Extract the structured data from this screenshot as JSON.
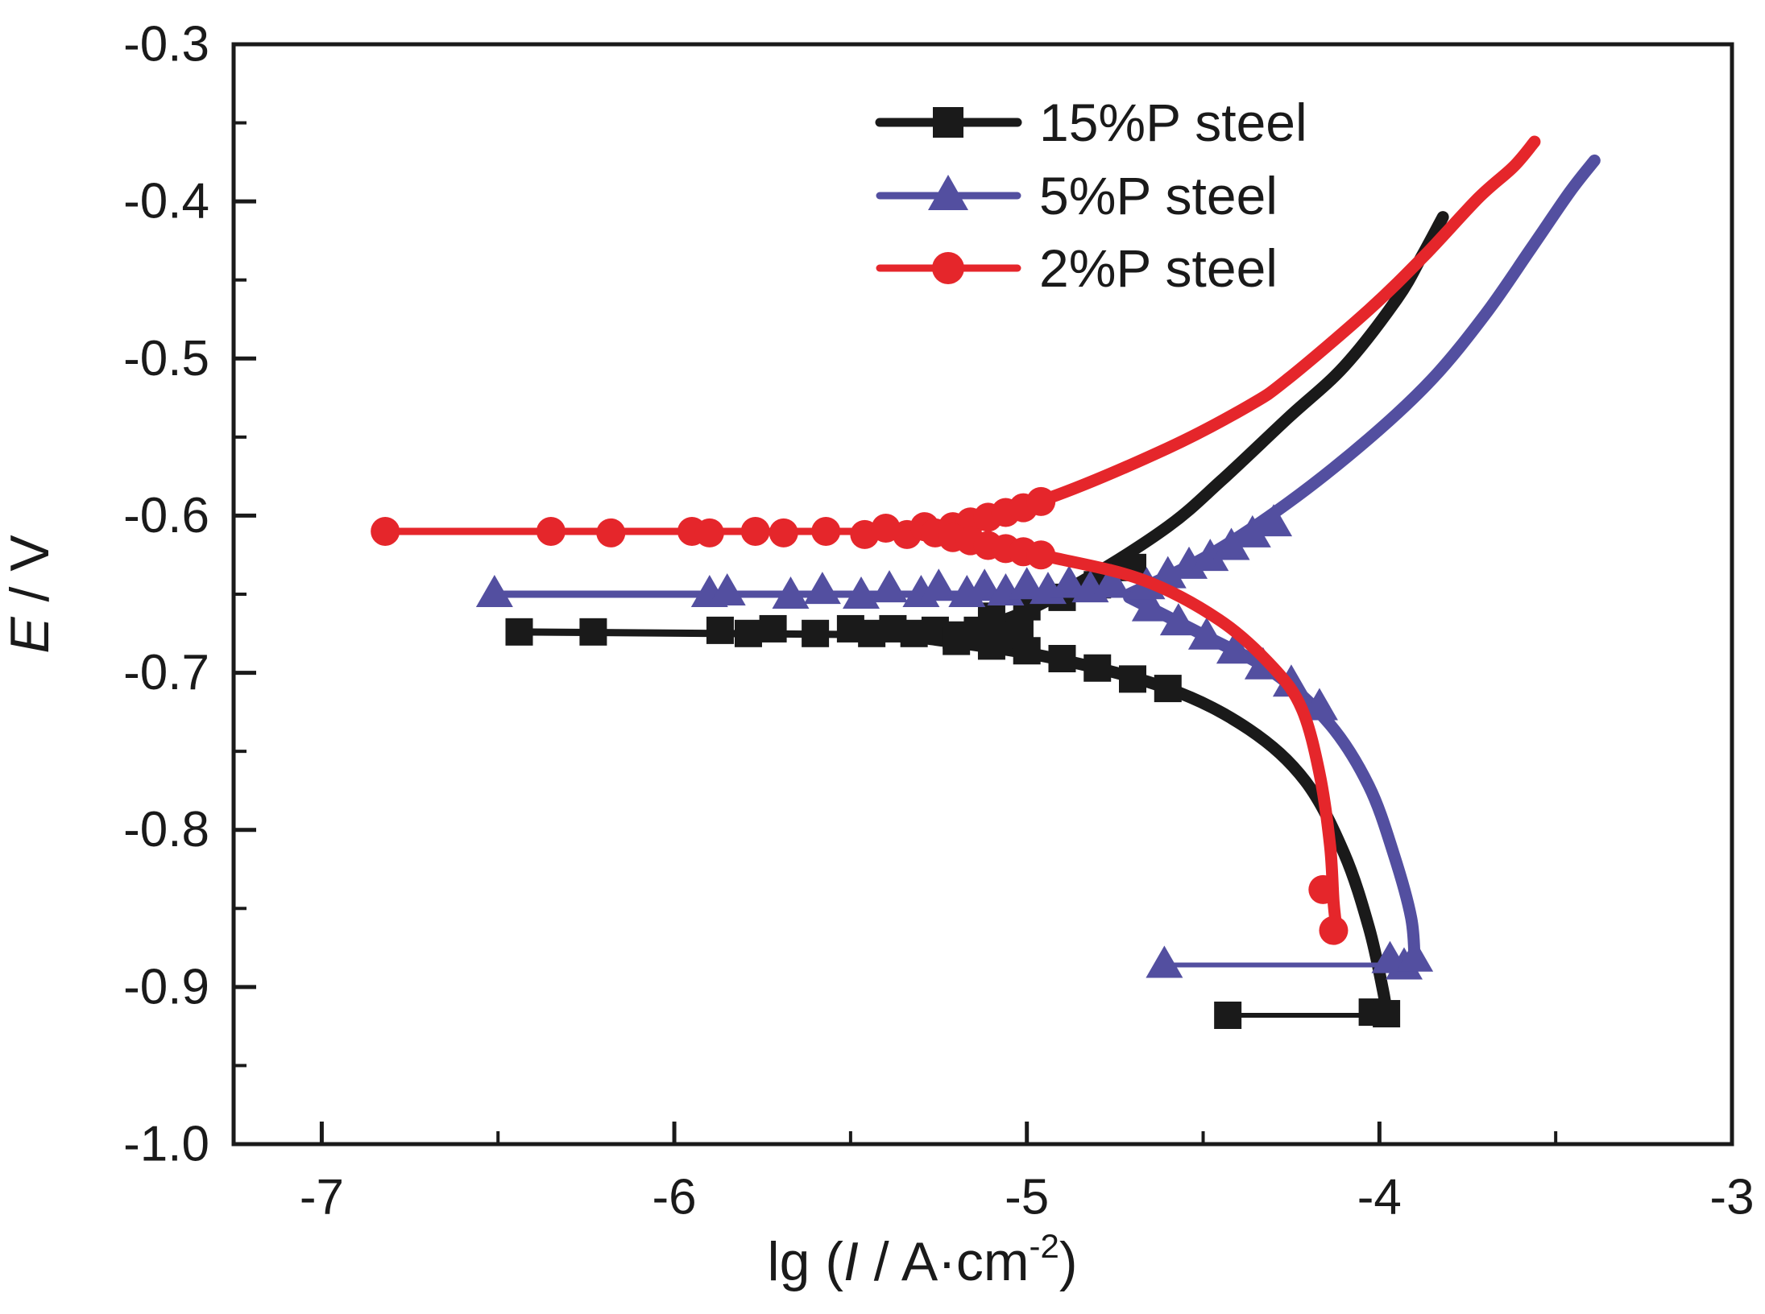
{
  "figure": {
    "background": "#ffffff",
    "text_color": "#1a1a1a",
    "axis_color": "#1a1a1a"
  },
  "chart_data": {
    "type": "line",
    "title": "",
    "xlabel": "lg (I / A·cm⁻²)",
    "xlabel_parts": {
      "prefix": "lg (",
      "italic_symbol": "I",
      "mid": " / A·cm",
      "superscript": "-2",
      "suffix": ")"
    },
    "ylabel": "E / V",
    "ylabel_parts": {
      "italic_symbol": "E",
      "rest": " / V"
    },
    "xlim": [
      -7.25,
      -3.0
    ],
    "ylim": [
      -1.0,
      -0.3
    ],
    "x_major_ticks": [
      -7,
      -6,
      -5,
      -4,
      -3
    ],
    "x_minor_ticks": [
      -6.5,
      -5.5,
      -4.5,
      -3.5
    ],
    "y_major_ticks": [
      -0.3,
      -0.4,
      -0.5,
      -0.6,
      -0.7,
      -0.8,
      -0.9,
      -1.0
    ],
    "y_minor_ticks": [
      -0.35,
      -0.45,
      -0.55,
      -0.65,
      -0.75,
      -0.85,
      -0.95
    ],
    "y_tick_format_decimals": 1,
    "grid": false,
    "legend": {
      "position": "upper-center",
      "entries": [
        {
          "label": "15%P steel",
          "color": "#1a1a1a",
          "marker": "square"
        },
        {
          "label": "5%P steel",
          "color": "#534fa0",
          "marker": "triangle"
        },
        {
          "label": "2%P steel",
          "color": "#e5262b",
          "marker": "circle"
        }
      ]
    },
    "series": [
      {
        "name": "15%P steel",
        "color": "#1a1a1a",
        "marker": "square",
        "corrosion_potential_V": -0.674,
        "flat_markers": [
          [
            -6.44,
            -0.674
          ],
          [
            -6.23,
            -0.674
          ],
          [
            -5.87,
            -0.673
          ],
          [
            -5.79,
            -0.675
          ],
          [
            -5.72,
            -0.672
          ],
          [
            -5.6,
            -0.675
          ],
          [
            -5.5,
            -0.672
          ],
          [
            -5.44,
            -0.675
          ],
          [
            -5.38,
            -0.672
          ],
          [
            -5.32,
            -0.675
          ],
          [
            -5.26,
            -0.673
          ],
          [
            -5.2,
            -0.676
          ],
          [
            -5.14,
            -0.673
          ],
          [
            -5.08,
            -0.676
          ],
          [
            -5.02,
            -0.674
          ]
        ],
        "anodic": [
          [
            -5.29,
            -0.676
          ],
          [
            -5.06,
            -0.666
          ],
          [
            -4.83,
            -0.64
          ],
          [
            -4.6,
            -0.607
          ],
          [
            -4.45,
            -0.578
          ],
          [
            -4.26,
            -0.538
          ],
          [
            -4.1,
            -0.505
          ],
          [
            -3.95,
            -0.462
          ],
          [
            -3.88,
            -0.435
          ],
          [
            -3.82,
            -0.41
          ]
        ],
        "cathodic": [
          [
            -5.29,
            -0.678
          ],
          [
            -4.94,
            -0.69
          ],
          [
            -4.6,
            -0.71
          ],
          [
            -4.37,
            -0.736
          ],
          [
            -4.21,
            -0.769
          ],
          [
            -4.1,
            -0.815
          ],
          [
            -4.03,
            -0.862
          ],
          [
            -3.99,
            -0.902
          ],
          [
            -3.98,
            -0.917
          ]
        ],
        "branch_markers": [
          [
            -5.2,
            -0.68
          ],
          [
            -5.1,
            -0.683
          ],
          [
            -5.0,
            -0.686
          ],
          [
            -4.9,
            -0.691
          ],
          [
            -4.8,
            -0.697
          ],
          [
            -4.7,
            -0.704
          ],
          [
            -4.6,
            -0.71
          ],
          [
            -5.1,
            -0.664
          ],
          [
            -5.0,
            -0.658
          ],
          [
            -4.9,
            -0.652
          ],
          [
            -4.8,
            -0.644
          ],
          [
            -4.7,
            -0.633
          ]
        ],
        "return_line": [
          [
            -4.43,
            -0.918
          ],
          [
            -3.98,
            -0.918
          ]
        ],
        "end_markers": [
          [
            -4.43,
            -0.918
          ],
          [
            -4.02,
            -0.916
          ],
          [
            -3.98,
            -0.917
          ]
        ]
      },
      {
        "name": "5%P steel",
        "color": "#534fa0",
        "marker": "triangle",
        "corrosion_potential_V": -0.65,
        "flat_markers": [
          [
            -6.51,
            -0.65
          ],
          [
            -5.9,
            -0.65
          ],
          [
            -5.85,
            -0.649
          ],
          [
            -5.67,
            -0.651
          ],
          [
            -5.58,
            -0.648
          ],
          [
            -5.47,
            -0.651
          ],
          [
            -5.39,
            -0.647
          ],
          [
            -5.3,
            -0.65
          ],
          [
            -5.25,
            -0.646
          ],
          [
            -5.17,
            -0.65
          ],
          [
            -5.12,
            -0.646
          ],
          [
            -5.06,
            -0.649
          ],
          [
            -5.0,
            -0.645
          ],
          [
            -4.94,
            -0.648
          ],
          [
            -4.88,
            -0.644
          ],
          [
            -4.82,
            -0.647
          ],
          [
            -4.76,
            -0.643
          ]
        ],
        "anodic": [
          [
            -4.71,
            -0.65
          ],
          [
            -4.49,
            -0.626
          ],
          [
            -4.26,
            -0.592
          ],
          [
            -4.03,
            -0.551
          ],
          [
            -3.85,
            -0.513
          ],
          [
            -3.7,
            -0.472
          ],
          [
            -3.57,
            -0.43
          ],
          [
            -3.46,
            -0.394
          ],
          [
            -3.39,
            -0.374
          ]
        ],
        "cathodic": [
          [
            -4.71,
            -0.652
          ],
          [
            -4.49,
            -0.677
          ],
          [
            -4.3,
            -0.7
          ],
          [
            -4.14,
            -0.733
          ],
          [
            -4.03,
            -0.772
          ],
          [
            -3.96,
            -0.815
          ],
          [
            -3.91,
            -0.856
          ],
          [
            -3.9,
            -0.885
          ]
        ],
        "branch_markers": [
          [
            -4.65,
            -0.659
          ],
          [
            -4.57,
            -0.668
          ],
          [
            -4.49,
            -0.677
          ],
          [
            -4.41,
            -0.686
          ],
          [
            -4.33,
            -0.696
          ],
          [
            -4.25,
            -0.707
          ],
          [
            -4.17,
            -0.722
          ],
          [
            -4.66,
            -0.645
          ],
          [
            -4.6,
            -0.638
          ],
          [
            -4.54,
            -0.632
          ],
          [
            -4.48,
            -0.627
          ],
          [
            -4.42,
            -0.62
          ],
          [
            -4.36,
            -0.612
          ],
          [
            -4.3,
            -0.605
          ]
        ],
        "return_line": [
          [
            -4.61,
            -0.886
          ],
          [
            -3.9,
            -0.886
          ]
        ],
        "end_markers": [
          [
            -4.61,
            -0.886
          ],
          [
            -3.97,
            -0.883
          ],
          [
            -3.93,
            -0.887
          ],
          [
            -3.9,
            -0.882
          ]
        ]
      },
      {
        "name": "2%P steel",
        "color": "#e5262b",
        "marker": "circle",
        "corrosion_potential_V": -0.61,
        "flat_markers": [
          [
            -6.82,
            -0.61
          ],
          [
            -6.35,
            -0.61
          ],
          [
            -6.18,
            -0.611
          ],
          [
            -5.95,
            -0.61
          ],
          [
            -5.9,
            -0.611
          ],
          [
            -5.77,
            -0.61
          ],
          [
            -5.69,
            -0.611
          ],
          [
            -5.57,
            -0.61
          ],
          [
            -5.46,
            -0.612
          ],
          [
            -5.4,
            -0.608
          ],
          [
            -5.34,
            -0.612
          ],
          [
            -5.29,
            -0.607
          ],
          [
            -5.26,
            -0.611
          ]
        ],
        "anodic": [
          [
            -5.26,
            -0.61
          ],
          [
            -4.94,
            -0.589
          ],
          [
            -4.6,
            -0.557
          ],
          [
            -4.37,
            -0.53
          ],
          [
            -4.26,
            -0.513
          ],
          [
            -4.03,
            -0.469
          ],
          [
            -3.87,
            -0.434
          ],
          [
            -3.72,
            -0.398
          ],
          [
            -3.62,
            -0.378
          ],
          [
            -3.56,
            -0.362
          ]
        ],
        "cathodic": [
          [
            -5.26,
            -0.611
          ],
          [
            -4.94,
            -0.626
          ],
          [
            -4.67,
            -0.641
          ],
          [
            -4.45,
            -0.667
          ],
          [
            -4.3,
            -0.697
          ],
          [
            -4.22,
            -0.723
          ],
          [
            -4.17,
            -0.764
          ],
          [
            -4.14,
            -0.81
          ],
          [
            -4.13,
            -0.846
          ],
          [
            -4.12,
            -0.866
          ]
        ],
        "branch_markers": [
          [
            -5.21,
            -0.607
          ],
          [
            -5.16,
            -0.604
          ],
          [
            -5.11,
            -0.601
          ],
          [
            -5.06,
            -0.598
          ],
          [
            -5.01,
            -0.595
          ],
          [
            -4.96,
            -0.591
          ],
          [
            -5.21,
            -0.614
          ],
          [
            -5.16,
            -0.616
          ],
          [
            -5.11,
            -0.619
          ],
          [
            -5.06,
            -0.621
          ],
          [
            -5.01,
            -0.623
          ],
          [
            -4.96,
            -0.625
          ]
        ],
        "return_line": null,
        "end_markers": [
          [
            -4.16,
            -0.838
          ],
          [
            -4.13,
            -0.864
          ]
        ]
      }
    ]
  }
}
